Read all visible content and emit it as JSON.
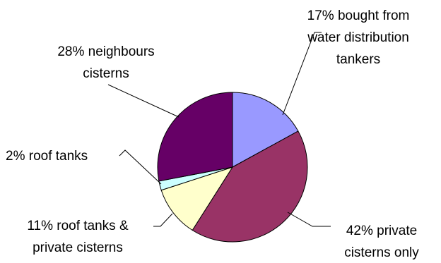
{
  "chart_data": {
    "type": "pie",
    "slices": [
      {
        "label_lines": [
          "17% bought from",
          "water distribution",
          "tankers"
        ],
        "value": 17,
        "color": "#9999ff"
      },
      {
        "label_lines": [
          "42% private",
          "cisterns only"
        ],
        "value": 42,
        "color": "#993366"
      },
      {
        "label_lines": [
          "11% roof tanks &",
          "private cisterns"
        ],
        "value": 11,
        "color": "#ffffcc"
      },
      {
        "label_lines": [
          "2% roof tanks"
        ],
        "value": 2,
        "color": "#ccffff"
      },
      {
        "label_lines": [
          "28% neighbours",
          "cisterns"
        ],
        "value": 28,
        "color": "#660066"
      }
    ],
    "start_angle_deg": 0,
    "direction": "clockwise",
    "legend": "none"
  }
}
